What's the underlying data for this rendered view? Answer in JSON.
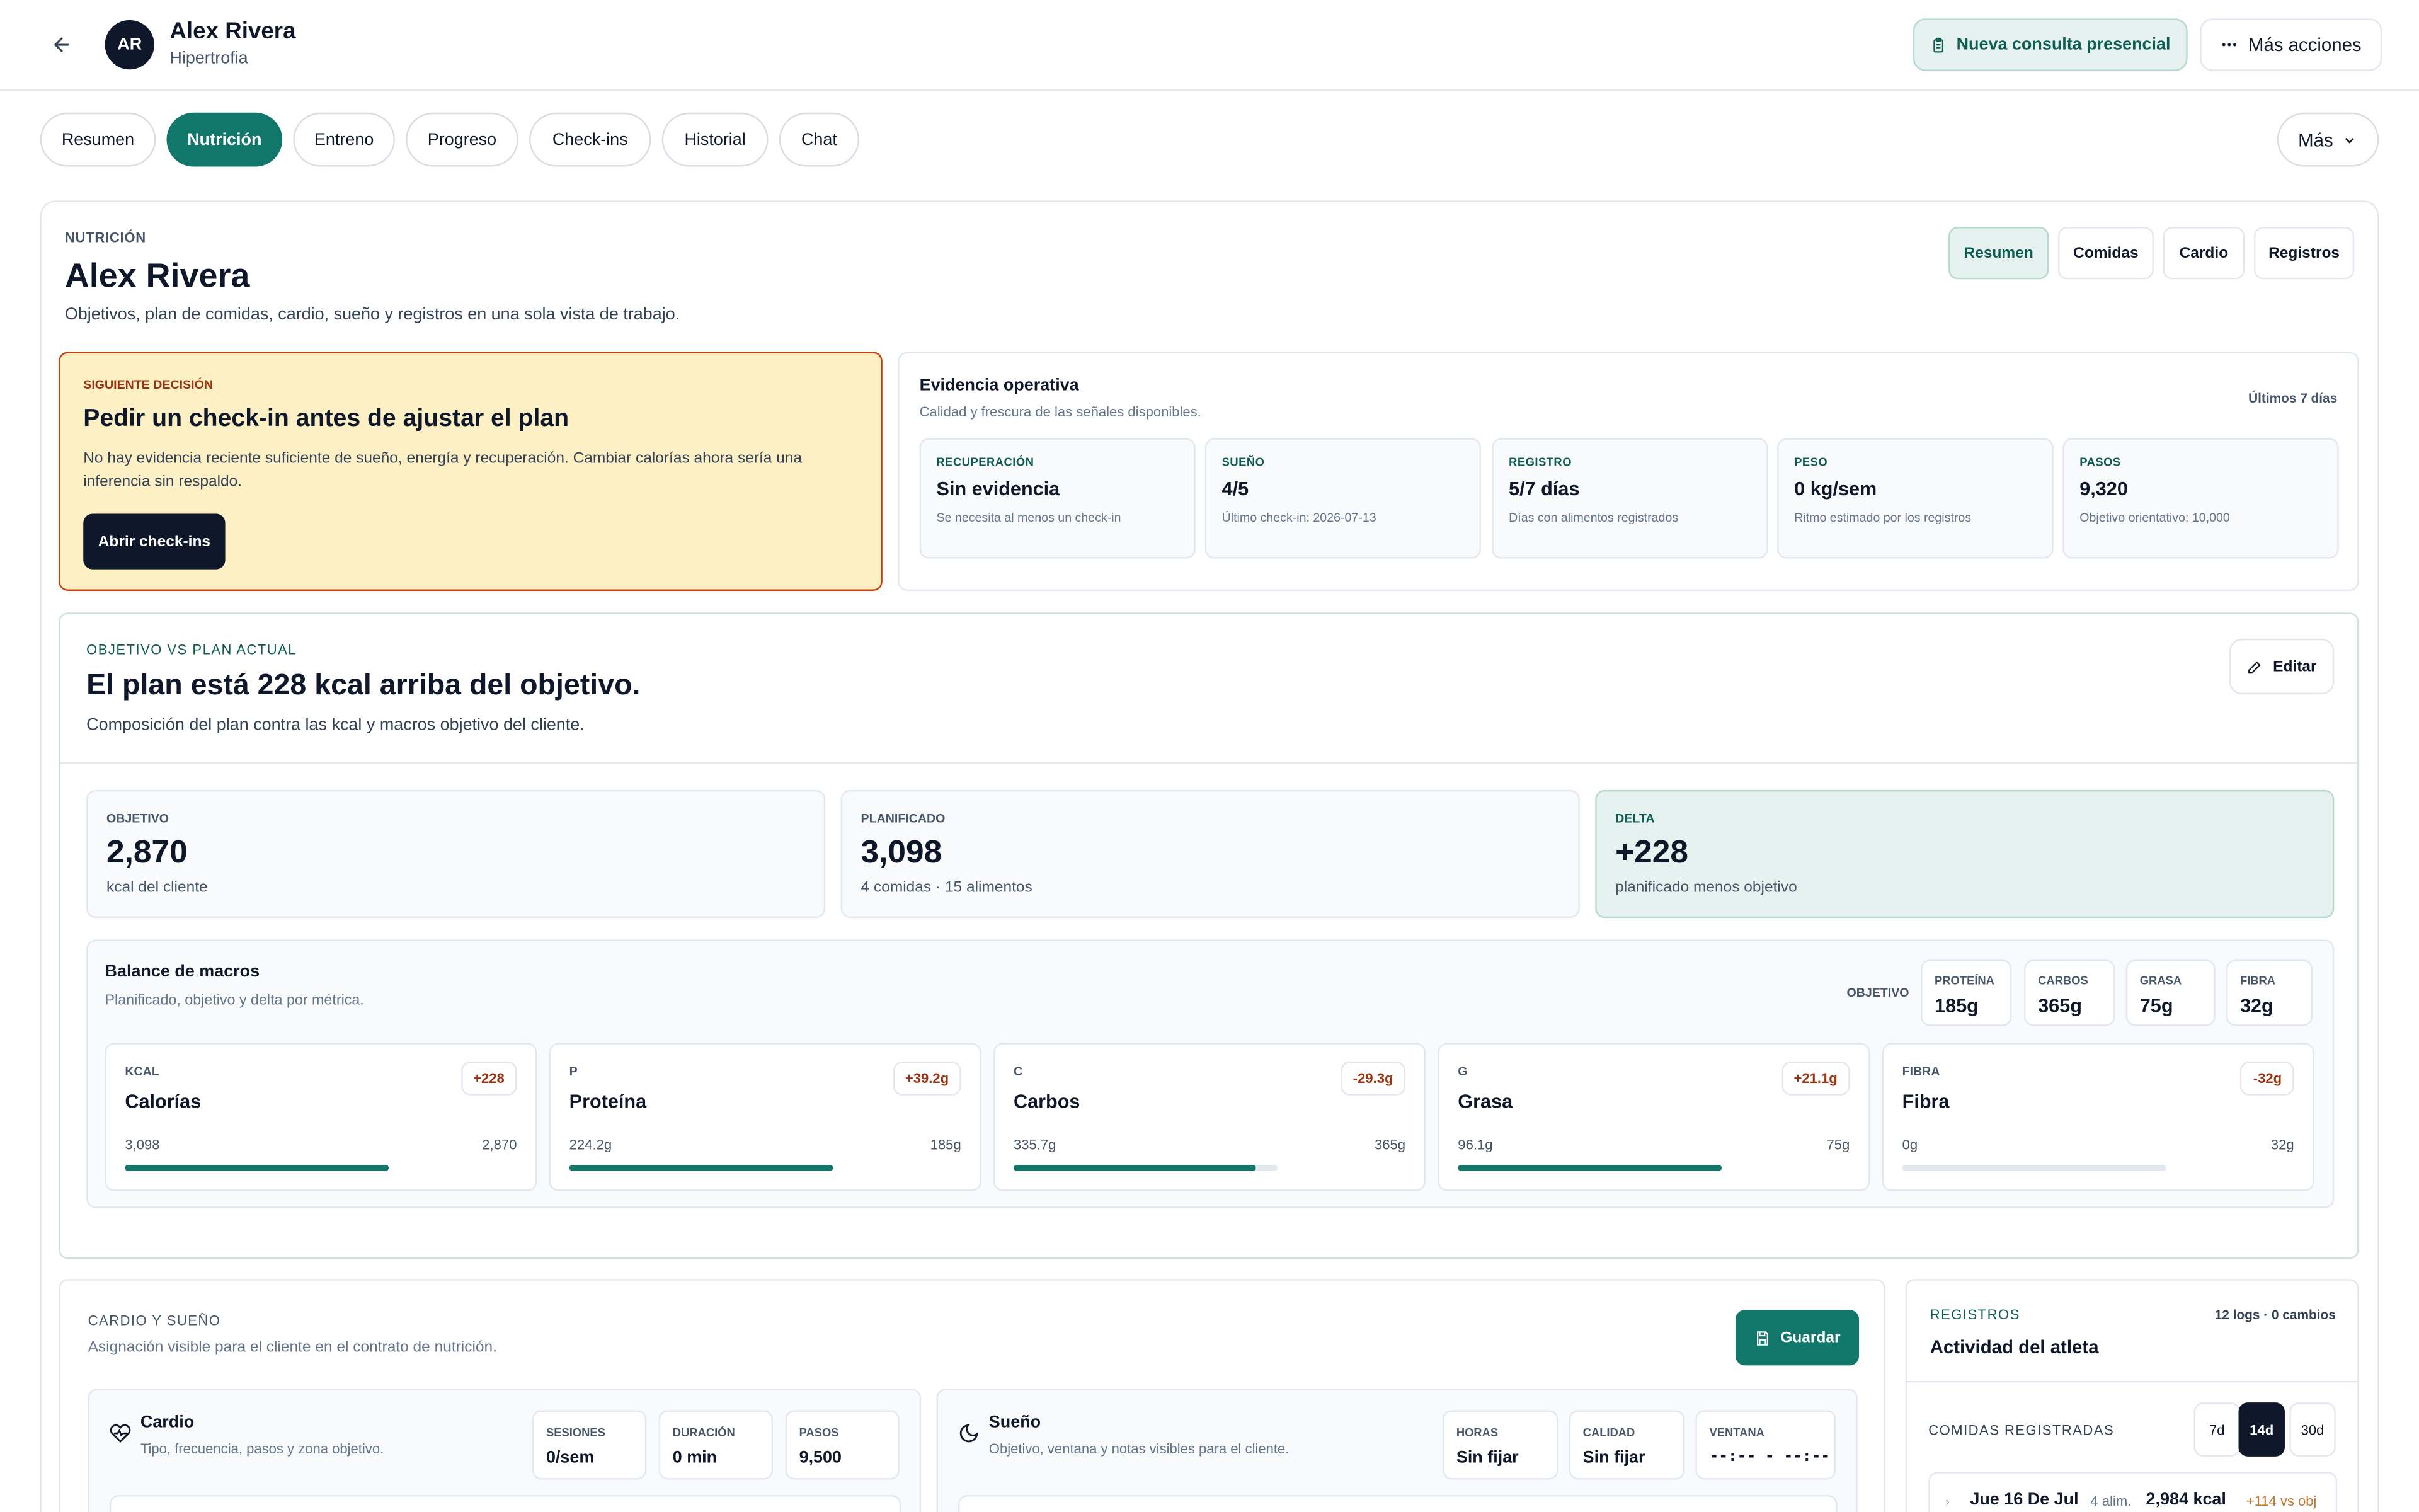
{
  "header": {
    "avatar_initials": "AR",
    "client_name": "Alex Rivera",
    "client_goal": "Hipertrofia",
    "consult_button": "Nueva consulta presencial",
    "more_actions_button": "Más acciones"
  },
  "tabs": [
    {
      "label": "Resumen",
      "active": false
    },
    {
      "label": "Nutrición",
      "active": true
    },
    {
      "label": "Entreno",
      "active": false
    },
    {
      "label": "Progreso",
      "active": false
    },
    {
      "label": "Check-ins",
      "active": false
    },
    {
      "label": "Historial",
      "active": false
    },
    {
      "label": "Chat",
      "active": false
    }
  ],
  "mas_button": "Más",
  "section": {
    "eyebrow": "NUTRICIÓN",
    "title": "Alex Rivera",
    "description": "Objetivos, plan de comidas, cardio, sueño y registros en una sola vista de trabajo.",
    "subtabs": [
      {
        "label": "Resumen",
        "active": true
      },
      {
        "label": "Comidas",
        "active": false
      },
      {
        "label": "Cardio",
        "active": false
      },
      {
        "label": "Registros",
        "active": false
      }
    ]
  },
  "decision": {
    "eyebrow": "SIGUIENTE DECISIÓN",
    "title": "Pedir un check-in antes de ajustar el plan",
    "body": "No hay evidencia reciente suficiente de sueño, energía y recuperación. Cambiar calorías ahora sería una inferencia sin respaldo.",
    "button": "Abrir check-ins"
  },
  "evidence": {
    "title": "Evidencia operativa",
    "subtitle": "Calidad y frescura de las señales disponibles.",
    "range": "Últimos 7 días",
    "tiles": [
      {
        "label": "RECUPERACIÓN",
        "value": "Sin evidencia",
        "note": "Se necesita al menos un check-in"
      },
      {
        "label": "SUEÑO",
        "value": "4/5",
        "note": "Último check-in: 2026-07-13"
      },
      {
        "label": "REGISTRO",
        "value": "5/7 días",
        "note": "Días con alimentos registrados"
      },
      {
        "label": "PESO",
        "value": "0 kg/sem",
        "note": "Ritmo estimado por los registros"
      },
      {
        "label": "PASOS",
        "value": "9,320",
        "note": "Objetivo orientativo: 10,000"
      }
    ]
  },
  "plan": {
    "eyebrow": "OBJETIVO VS PLAN ACTUAL",
    "title": "El plan está 228 kcal arriba del objetivo.",
    "description": "Composición del plan contra las kcal y macros objetivo del cliente.",
    "edit_button": "Editar",
    "stats": [
      {
        "label": "OBJETIVO",
        "value": "2,870",
        "note": "kcal del cliente"
      },
      {
        "label": "PLANIFICADO",
        "value": "3,098",
        "note": "4 comidas · 15 alimentos"
      },
      {
        "label": "DELTA",
        "value": "+228",
        "note": "planificado menos objetivo"
      }
    ]
  },
  "macros": {
    "title": "Balance de macros",
    "subtitle": "Planificado, objetivo y delta por métrica.",
    "target_label": "OBJETIVO",
    "targets": [
      {
        "label": "PROTEÍNA",
        "value": "185g"
      },
      {
        "label": "CARBOS",
        "value": "365g"
      },
      {
        "label": "GRASA",
        "value": "75g"
      },
      {
        "label": "FIBRA",
        "value": "32g"
      }
    ],
    "cards": [
      {
        "code": "KCAL",
        "name": "Calorías",
        "delta": "+228",
        "planned": "3,098",
        "target": "2,870",
        "progress": 1.0
      },
      {
        "code": "P",
        "name": "Proteína",
        "delta": "+39.2g",
        "planned": "224.2g",
        "target": "185g",
        "progress": 1.0
      },
      {
        "code": "C",
        "name": "Carbos",
        "delta": "-29.3g",
        "planned": "335.7g",
        "target": "365g",
        "progress": 0.92
      },
      {
        "code": "G",
        "name": "Grasa",
        "delta": "+21.1g",
        "planned": "96.1g",
        "target": "75g",
        "progress": 1.0
      },
      {
        "code": "FIBRA",
        "name": "Fibra",
        "delta": "-32g",
        "planned": "0g",
        "target": "32g",
        "progress": 0.0
      }
    ]
  },
  "cardio_sleep": {
    "eyebrow": "CARDIO Y SUEÑO",
    "subtitle": "Asignación visible para el cliente en el contrato de nutrición.",
    "save_button": "Guardar",
    "cardio": {
      "title": "Cardio",
      "subtitle": "Tipo, frecuencia, pasos y zona objetivo.",
      "metrics": [
        {
          "label": "SESIONES",
          "value": "0/sem"
        },
        {
          "label": "DURACIÓN",
          "value": "0 min"
        },
        {
          "label": "PASOS",
          "value": "9,500"
        }
      ]
    },
    "sleep": {
      "title": "Sueño",
      "subtitle": "Objetivo, ventana y notas visibles para el cliente.",
      "metrics": [
        {
          "label": "HORAS",
          "value": "Sin fijar"
        },
        {
          "label": "CALIDAD",
          "value": "Sin fijar"
        },
        {
          "label": "VENTANA",
          "value": "--:-- - --:--"
        }
      ]
    }
  },
  "logs": {
    "eyebrow": "REGISTROS",
    "counts": "12 logs · 0 cambios",
    "title": "Actividad del atleta",
    "meals_label": "COMIDAS REGISTRADAS",
    "ranges": [
      {
        "label": "7d",
        "active": false
      },
      {
        "label": "14d",
        "active": true
      },
      {
        "label": "30d",
        "active": false
      }
    ],
    "entry": {
      "date": "Jue 16 De Jul",
      "items": "4 alim.",
      "kcal": "2,984 kcal",
      "diff": "+114 vs obj"
    }
  },
  "colors": {
    "accent": "#12776b",
    "dark": "#0f172a",
    "warning_bg": "#fdf0c4",
    "warning_border": "#c2410c"
  }
}
